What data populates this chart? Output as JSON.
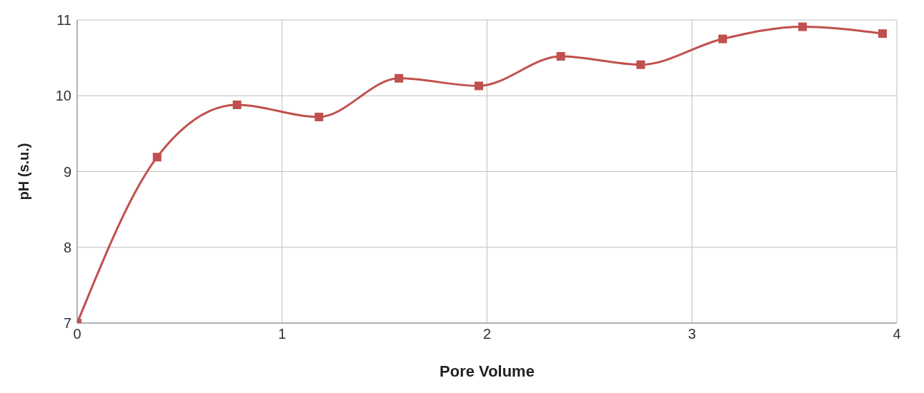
{
  "chart_data": {
    "type": "line",
    "xlabel": "Pore Volume",
    "ylabel": "pH (s.u.)",
    "x": [
      0,
      0.39,
      0.78,
      1.18,
      1.57,
      1.96,
      2.36,
      2.75,
      3.15,
      3.54,
      3.93
    ],
    "series": [
      {
        "color": "#c0504d",
        "values": [
          7.0,
          9.19,
          9.88,
          9.72,
          10.23,
          10.13,
          10.52,
          10.41,
          10.75,
          10.91,
          10.82
        ]
      }
    ],
    "xlim": [
      0,
      4
    ],
    "xticks": [
      0,
      1,
      2,
      3,
      4
    ],
    "ylim": [
      7,
      11
    ],
    "yticks": [
      7,
      8,
      9,
      10,
      11
    ],
    "grid": true,
    "legend": false,
    "marker": "square",
    "line_style": "solid"
  }
}
